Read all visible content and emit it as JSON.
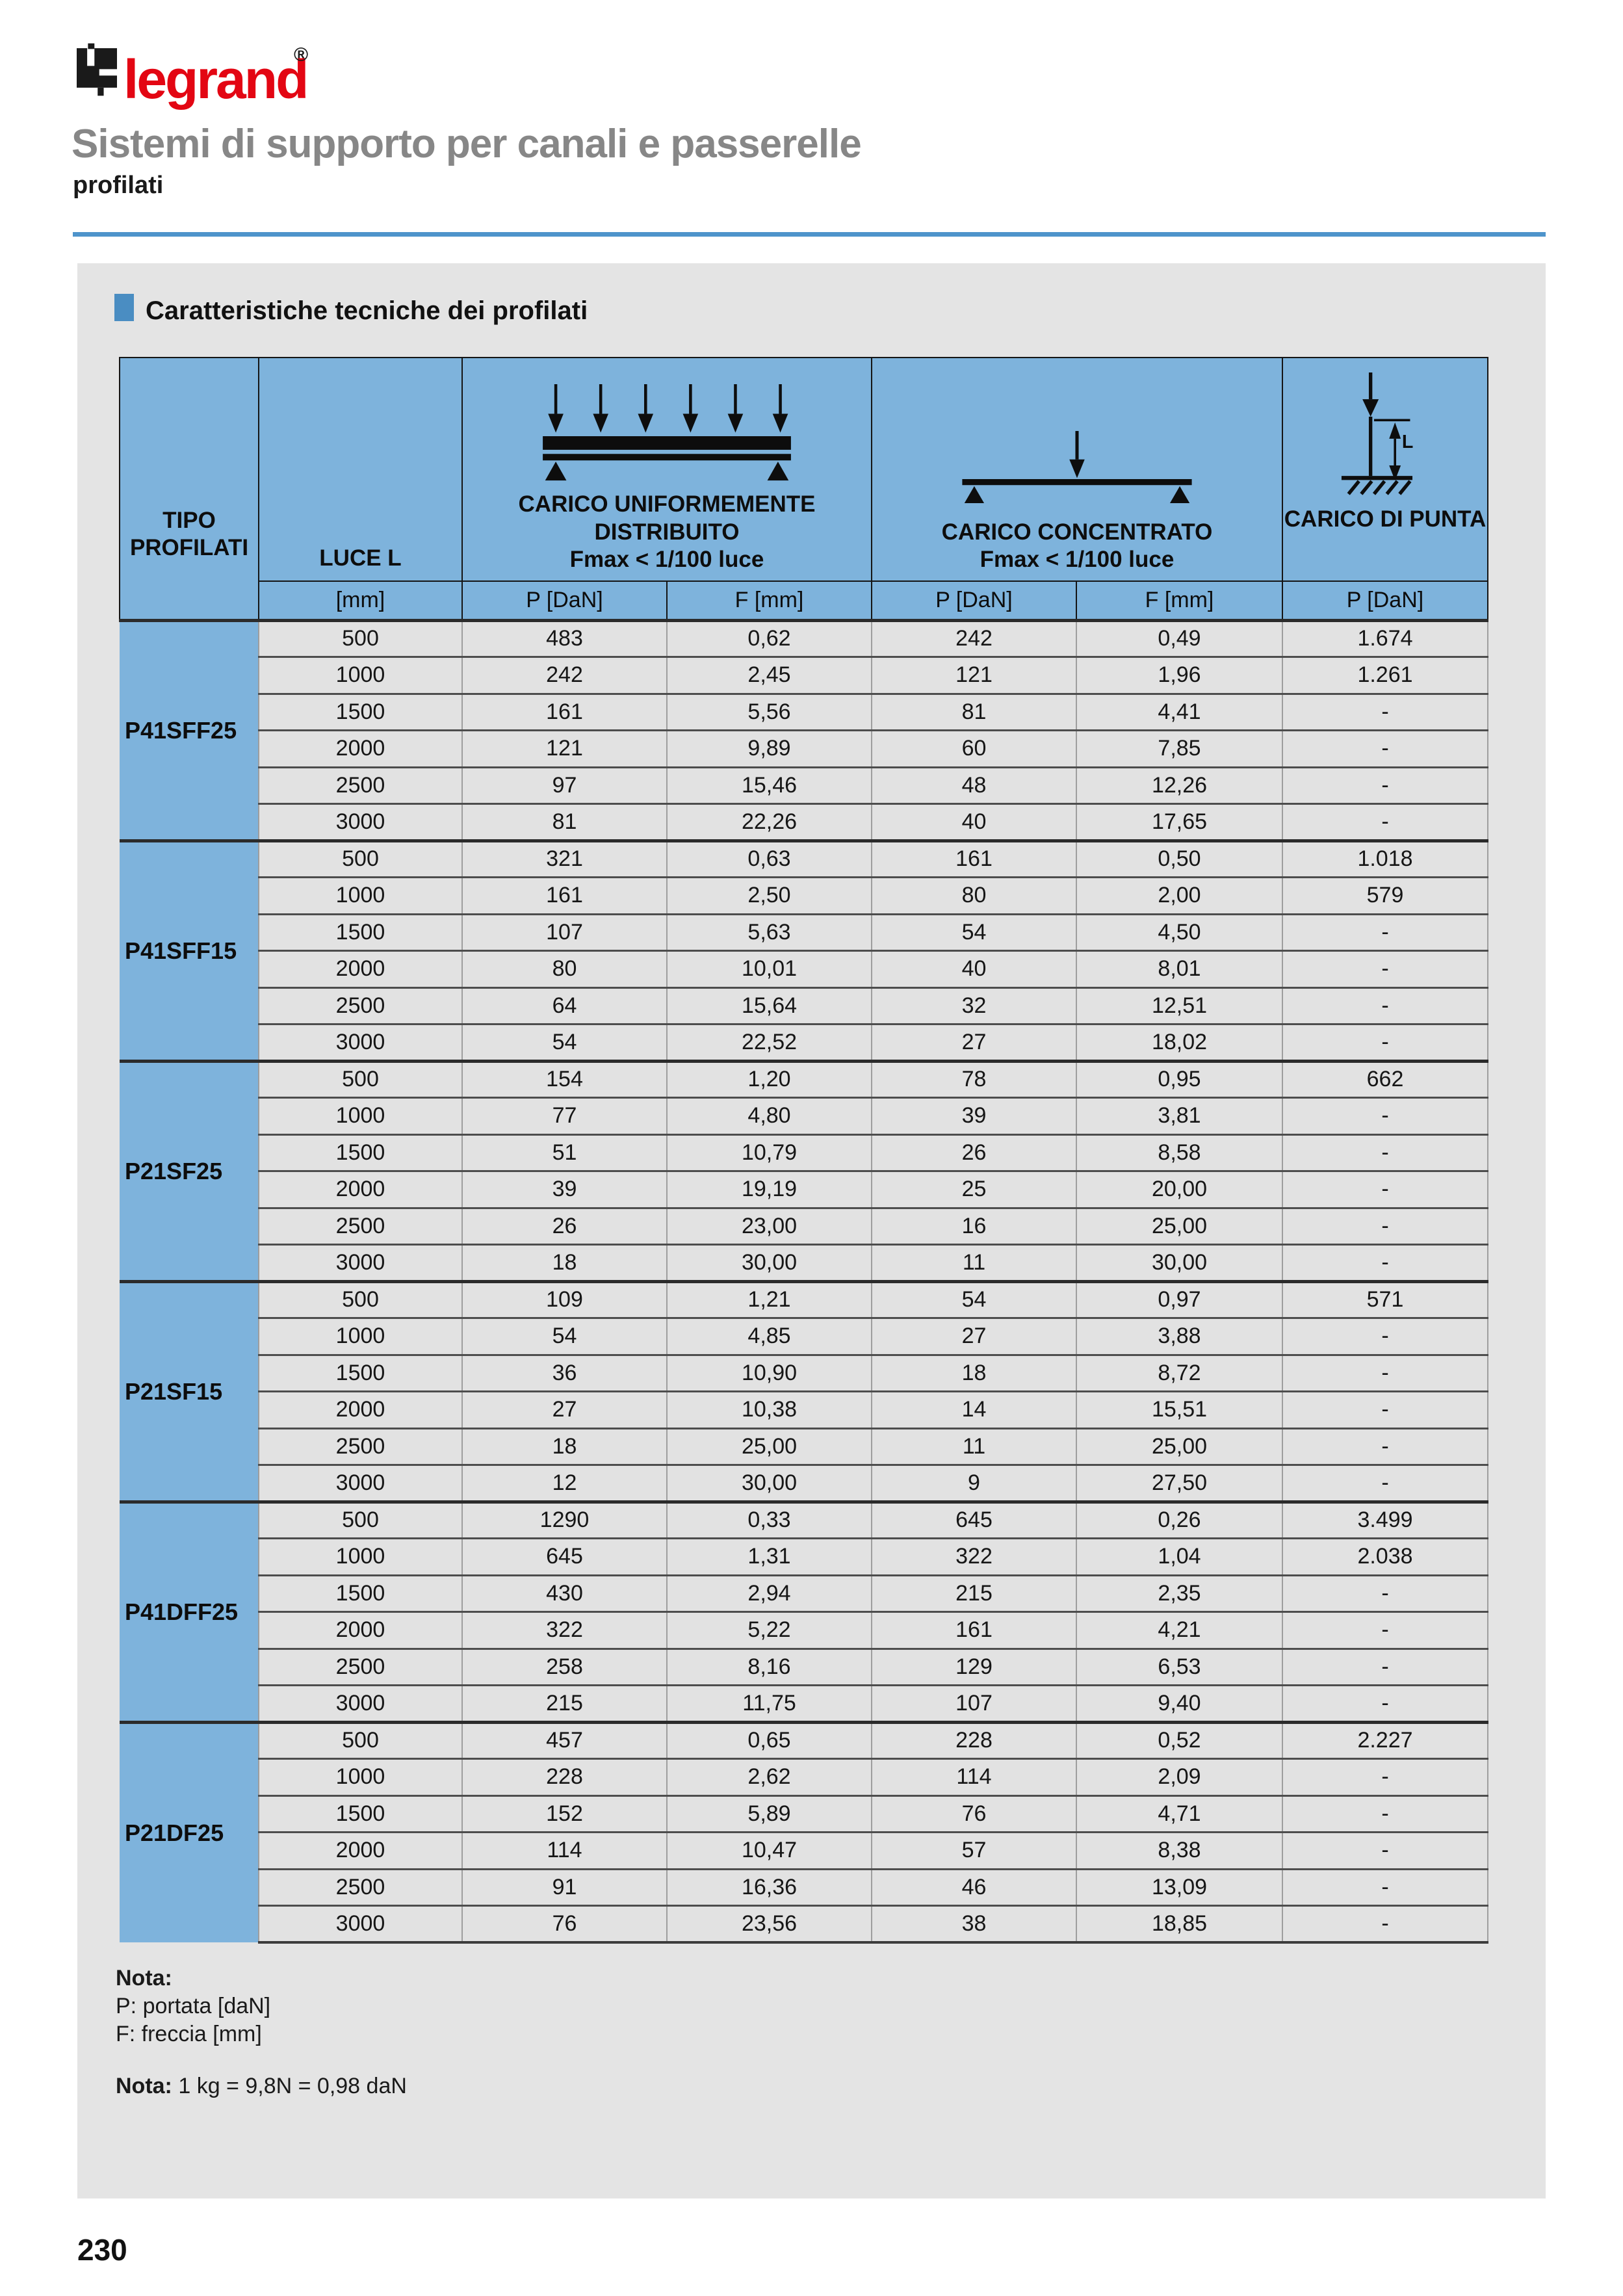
{
  "page": {
    "brand": "legrand",
    "registered_mark": "®",
    "title": "Sistemi di supporto per canali e passerelle",
    "subtitle": "profilati",
    "section_title": "Caratteristiche tecniche dei profilati",
    "page_number": "230"
  },
  "colors": {
    "brand_red": "#e30613",
    "title_gray": "#878787",
    "rule_blue": "#4e94cb",
    "bullet_blue": "#4a8dc2",
    "table_header_blue": "#7eb3dc",
    "panel_gray": "#e4e4e4",
    "cell_gray": "#e2e2e2"
  },
  "table": {
    "header": {
      "tipo_line1": "TIPO",
      "tipo_line2": "PROFILATI",
      "luce": "LUCE L",
      "distributed_title_line1": "CARICO UNIFORMEMENTE",
      "distributed_title_line2": "DISTRIBUITO",
      "distributed_subtitle": "Fmax < 1/100 luce",
      "concentrated_title": "CARICO CONCENTRATO",
      "concentrated_subtitle": "Fmax < 1/100 luce",
      "punta_title": "CARICO DI PUNTA",
      "punta_dim_label": "L"
    },
    "units": [
      "[mm]",
      "P [DaN]",
      "F [mm]",
      "P [DaN]",
      "F [mm]",
      "P [DaN]"
    ],
    "groups": [
      {
        "name": "P41SFF25",
        "rows": [
          [
            "500",
            "483",
            "0,62",
            "242",
            "0,49",
            "1.674"
          ],
          [
            "1000",
            "242",
            "2,45",
            "121",
            "1,96",
            "1.261"
          ],
          [
            "1500",
            "161",
            "5,56",
            "81",
            "4,41",
            "-"
          ],
          [
            "2000",
            "121",
            "9,89",
            "60",
            "7,85",
            "-"
          ],
          [
            "2500",
            "97",
            "15,46",
            "48",
            "12,26",
            "-"
          ],
          [
            "3000",
            "81",
            "22,26",
            "40",
            "17,65",
            "-"
          ]
        ]
      },
      {
        "name": "P41SFF15",
        "rows": [
          [
            "500",
            "321",
            "0,63",
            "161",
            "0,50",
            "1.018"
          ],
          [
            "1000",
            "161",
            "2,50",
            "80",
            "2,00",
            "579"
          ],
          [
            "1500",
            "107",
            "5,63",
            "54",
            "4,50",
            "-"
          ],
          [
            "2000",
            "80",
            "10,01",
            "40",
            "8,01",
            "-"
          ],
          [
            "2500",
            "64",
            "15,64",
            "32",
            "12,51",
            "-"
          ],
          [
            "3000",
            "54",
            "22,52",
            "27",
            "18,02",
            "-"
          ]
        ]
      },
      {
        "name": "P21SF25",
        "rows": [
          [
            "500",
            "154",
            "1,20",
            "78",
            "0,95",
            "662"
          ],
          [
            "1000",
            "77",
            "4,80",
            "39",
            "3,81",
            "-"
          ],
          [
            "1500",
            "51",
            "10,79",
            "26",
            "8,58",
            "-"
          ],
          [
            "2000",
            "39",
            "19,19",
            "25",
            "20,00",
            "-"
          ],
          [
            "2500",
            "26",
            "23,00",
            "16",
            "25,00",
            "-"
          ],
          [
            "3000",
            "18",
            "30,00",
            "11",
            "30,00",
            "-"
          ]
        ]
      },
      {
        "name": "P21SF15",
        "rows": [
          [
            "500",
            "109",
            "1,21",
            "54",
            "0,97",
            "571"
          ],
          [
            "1000",
            "54",
            "4,85",
            "27",
            "3,88",
            "-"
          ],
          [
            "1500",
            "36",
            "10,90",
            "18",
            "8,72",
            "-"
          ],
          [
            "2000",
            "27",
            "10,38",
            "14",
            "15,51",
            "-"
          ],
          [
            "2500",
            "18",
            "25,00",
            "11",
            "25,00",
            "-"
          ],
          [
            "3000",
            "12",
            "30,00",
            "9",
            "27,50",
            "-"
          ]
        ]
      },
      {
        "name": "P41DFF25",
        "rows": [
          [
            "500",
            "1290",
            "0,33",
            "645",
            "0,26",
            "3.499"
          ],
          [
            "1000",
            "645",
            "1,31",
            "322",
            "1,04",
            "2.038"
          ],
          [
            "1500",
            "430",
            "2,94",
            "215",
            "2,35",
            "-"
          ],
          [
            "2000",
            "322",
            "5,22",
            "161",
            "4,21",
            "-"
          ],
          [
            "2500",
            "258",
            "8,16",
            "129",
            "6,53",
            "-"
          ],
          [
            "3000",
            "215",
            "11,75",
            "107",
            "9,40",
            "-"
          ]
        ]
      },
      {
        "name": "P21DF25",
        "rows": [
          [
            "500",
            "457",
            "0,65",
            "228",
            "0,52",
            "2.227"
          ],
          [
            "1000",
            "228",
            "2,62",
            "114",
            "2,09",
            "-"
          ],
          [
            "1500",
            "152",
            "5,89",
            "76",
            "4,71",
            "-"
          ],
          [
            "2000",
            "114",
            "10,47",
            "57",
            "8,38",
            "-"
          ],
          [
            "2500",
            "91",
            "16,36",
            "46",
            "13,09",
            "-"
          ],
          [
            "3000",
            "76",
            "23,56",
            "38",
            "18,85",
            "-"
          ]
        ]
      }
    ]
  },
  "notes": {
    "note1_title": "Nota:",
    "note1_lines": [
      "P: portata [daN]",
      "F: freccia [mm]"
    ],
    "note2_label": "Nota:",
    "note2_text": " 1 kg = 9,8N = 0,98 daN"
  }
}
